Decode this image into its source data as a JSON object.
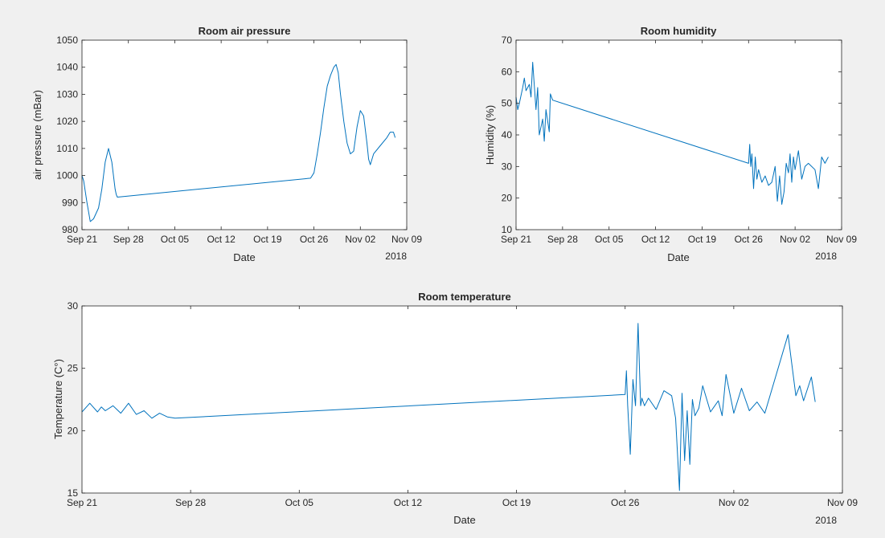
{
  "colors": {
    "figure_background": "#f0f0f0",
    "axes_background": "#ffffff",
    "axes_line": "#262626",
    "series_line": "#0072bd"
  },
  "chart_data": [
    {
      "type": "line",
      "title": "Room air pressure",
      "xlabel": "Date",
      "ylabel": "air pressure (mBar)",
      "x_scale": "date",
      "xlim": [
        "2018-09-21",
        "2018-11-09"
      ],
      "ylim": [
        980,
        1050
      ],
      "x_ticks": [
        "2018-09-21",
        "2018-09-28",
        "2018-10-05",
        "2018-10-12",
        "2018-10-19",
        "2018-10-26",
        "2018-11-02",
        "2018-11-09"
      ],
      "x_tick_labels": [
        "Sep 21",
        "Sep 28",
        "Oct 05",
        "Oct 12",
        "Oct 19",
        "Oct 26",
        "Nov 02",
        "Nov 09"
      ],
      "y_ticks": [
        980,
        990,
        1000,
        1010,
        1020,
        1030,
        1040,
        1050
      ],
      "x_year_label": "2018",
      "grid": false,
      "series": [
        {
          "x": [
            "2018-09-21 00:00",
            "2018-09-21 06:00",
            "2018-09-21 18:00",
            "2018-09-22 06:00",
            "2018-09-22 18:00",
            "2018-09-23 12:00",
            "2018-09-24 00:00",
            "2018-09-24 12:00",
            "2018-09-25 00:00",
            "2018-09-25 12:00",
            "2018-09-26 00:00",
            "2018-09-26 04:00",
            "2018-09-26 08:00",
            "2018-10-25 12:00",
            "2018-10-26 00:00",
            "2018-10-26 12:00",
            "2018-10-27 00:00",
            "2018-10-27 12:00",
            "2018-10-28 00:00",
            "2018-10-28 12:00",
            "2018-10-29 00:00",
            "2018-10-29 08:00",
            "2018-10-29 16:00",
            "2018-10-30 00:00",
            "2018-10-30 12:00",
            "2018-10-31 00:00",
            "2018-10-31 12:00",
            "2018-11-01 00:00",
            "2018-11-01 12:00",
            "2018-11-02 00:00",
            "2018-11-02 12:00",
            "2018-11-03 00:00",
            "2018-11-03 06:00",
            "2018-11-03 12:00",
            "2018-11-04 00:00",
            "2018-11-05 00:00",
            "2018-11-06 00:00",
            "2018-11-06 12:00",
            "2018-11-07 00:00",
            "2018-11-07 06:00"
          ],
          "y": [
            1000,
            998,
            990,
            983,
            984,
            988,
            995,
            1005,
            1010,
            1005,
            995,
            993,
            992,
            999,
            1001,
            1008,
            1016,
            1025,
            1033,
            1037,
            1040,
            1041,
            1038,
            1030,
            1020,
            1012,
            1008,
            1009,
            1018,
            1024,
            1022,
            1012,
            1006,
            1004,
            1008,
            1011,
            1014,
            1016,
            1016,
            1014
          ]
        }
      ]
    },
    {
      "type": "line",
      "title": "Room humidity",
      "xlabel": "Date",
      "ylabel": "Humidity (%)",
      "x_scale": "date",
      "xlim": [
        "2018-09-21",
        "2018-11-09"
      ],
      "ylim": [
        10,
        70
      ],
      "x_ticks": [
        "2018-09-21",
        "2018-09-28",
        "2018-10-05",
        "2018-10-12",
        "2018-10-19",
        "2018-10-26",
        "2018-11-02",
        "2018-11-09"
      ],
      "x_tick_labels": [
        "Sep 21",
        "Sep 28",
        "Oct 05",
        "Oct 12",
        "Oct 19",
        "Oct 26",
        "Nov 02",
        "Nov 09"
      ],
      "y_ticks": [
        10,
        20,
        30,
        40,
        50,
        60,
        70
      ],
      "x_year_label": "2018",
      "grid": false,
      "series": [
        {
          "x": [
            "2018-09-21 00:00",
            "2018-09-21 06:00",
            "2018-09-21 12:00",
            "2018-09-22 00:00",
            "2018-09-22 06:00",
            "2018-09-22 12:00",
            "2018-09-23 00:00",
            "2018-09-23 06:00",
            "2018-09-23 12:00",
            "2018-09-24 00:00",
            "2018-09-24 06:00",
            "2018-09-24 12:00",
            "2018-09-25 00:00",
            "2018-09-25 06:00",
            "2018-09-25 12:00",
            "2018-09-26 00:00",
            "2018-09-26 04:00",
            "2018-09-26 12:00",
            "2018-10-26 00:00",
            "2018-10-26 04:00",
            "2018-10-26 08:00",
            "2018-10-26 12:00",
            "2018-10-26 18:00",
            "2018-10-27 00:00",
            "2018-10-27 06:00",
            "2018-10-27 12:00",
            "2018-10-28 00:00",
            "2018-10-28 12:00",
            "2018-10-29 00:00",
            "2018-10-29 12:00",
            "2018-10-30 00:00",
            "2018-10-30 08:00",
            "2018-10-30 16:00",
            "2018-10-31 00:00",
            "2018-10-31 08:00",
            "2018-10-31 16:00",
            "2018-11-01 00:00",
            "2018-11-01 06:00",
            "2018-11-01 12:00",
            "2018-11-01 18:00",
            "2018-11-02 00:00",
            "2018-11-02 12:00",
            "2018-11-03 00:00",
            "2018-11-03 12:00",
            "2018-11-04 00:00",
            "2018-11-05 00:00",
            "2018-11-05 12:00",
            "2018-11-06 00:00",
            "2018-11-06 12:00",
            "2018-11-07 00:00"
          ],
          "y": [
            52,
            48,
            50,
            55,
            58,
            54,
            56,
            52,
            63,
            48,
            55,
            40,
            45,
            38,
            48,
            41,
            53,
            51,
            31,
            37,
            30,
            34,
            23,
            33,
            26,
            29,
            25,
            27,
            24,
            25,
            30,
            19,
            27,
            18,
            22,
            31,
            28,
            34,
            25,
            33,
            29,
            35,
            26,
            30,
            31,
            29,
            23,
            33,
            31,
            33
          ]
        }
      ]
    },
    {
      "type": "line",
      "title": "Room temperature",
      "xlabel": "Date",
      "ylabel": "Temperature (C°)",
      "x_scale": "date",
      "xlim": [
        "2018-09-21",
        "2018-11-09"
      ],
      "ylim": [
        15,
        30
      ],
      "x_ticks": [
        "2018-09-21",
        "2018-09-28",
        "2018-10-05",
        "2018-10-12",
        "2018-10-19",
        "2018-10-26",
        "2018-11-02",
        "2018-11-09"
      ],
      "x_tick_labels": [
        "Sep 21",
        "Sep 28",
        "Oct 05",
        "Oct 12",
        "Oct 19",
        "Oct 26",
        "Nov 02",
        "Nov 09"
      ],
      "y_ticks": [
        15,
        20,
        25,
        30
      ],
      "x_year_label": "2018",
      "grid": false,
      "series": [
        {
          "x": [
            "2018-09-21 00:00",
            "2018-09-21 12:00",
            "2018-09-22 00:00",
            "2018-09-22 06:00",
            "2018-09-22 12:00",
            "2018-09-23 00:00",
            "2018-09-23 12:00",
            "2018-09-24 00:00",
            "2018-09-24 12:00",
            "2018-09-25 00:00",
            "2018-09-25 12:00",
            "2018-09-26 00:00",
            "2018-09-26 12:00",
            "2018-09-27 00:00",
            "2018-10-26 00:00",
            "2018-10-26 02:00",
            "2018-10-26 04:00",
            "2018-10-26 08:00",
            "2018-10-26 12:00",
            "2018-10-26 16:00",
            "2018-10-26 20:00",
            "2018-10-27 00:00",
            "2018-10-27 02:00",
            "2018-10-27 06:00",
            "2018-10-27 12:00",
            "2018-10-28 00:00",
            "2018-10-28 12:00",
            "2018-10-29 00:00",
            "2018-10-29 06:00",
            "2018-10-29 12:00",
            "2018-10-29 16:00",
            "2018-10-29 20:00",
            "2018-10-30 00:00",
            "2018-10-30 04:00",
            "2018-10-30 08:00",
            "2018-10-30 12:00",
            "2018-10-30 18:00",
            "2018-10-31 00:00",
            "2018-10-31 12:00",
            "2018-11-01 00:00",
            "2018-11-01 06:00",
            "2018-11-01 12:00",
            "2018-11-02 00:00",
            "2018-11-02 12:00",
            "2018-11-03 00:00",
            "2018-11-03 12:00",
            "2018-11-04 00:00",
            "2018-11-05 12:00",
            "2018-11-06 00:00",
            "2018-11-06 06:00",
            "2018-11-06 12:00",
            "2018-11-07 00:00",
            "2018-11-07 06:00"
          ],
          "y": [
            21.5,
            22.2,
            21.5,
            21.9,
            21.6,
            22.0,
            21.4,
            22.2,
            21.3,
            21.6,
            21.0,
            21.4,
            21.1,
            21.0,
            22.9,
            24.8,
            22.0,
            18.1,
            24.1,
            22.0,
            28.6,
            22.0,
            22.6,
            22.0,
            22.6,
            21.7,
            23.2,
            22.8,
            21.0,
            15.2,
            23.0,
            17.6,
            21.6,
            17.3,
            22.5,
            21.2,
            21.8,
            23.6,
            21.5,
            22.4,
            21.2,
            24.5,
            21.4,
            23.4,
            21.6,
            22.3,
            21.4,
            27.7,
            22.8,
            23.6,
            22.4,
            24.3,
            22.3
          ]
        }
      ]
    }
  ]
}
